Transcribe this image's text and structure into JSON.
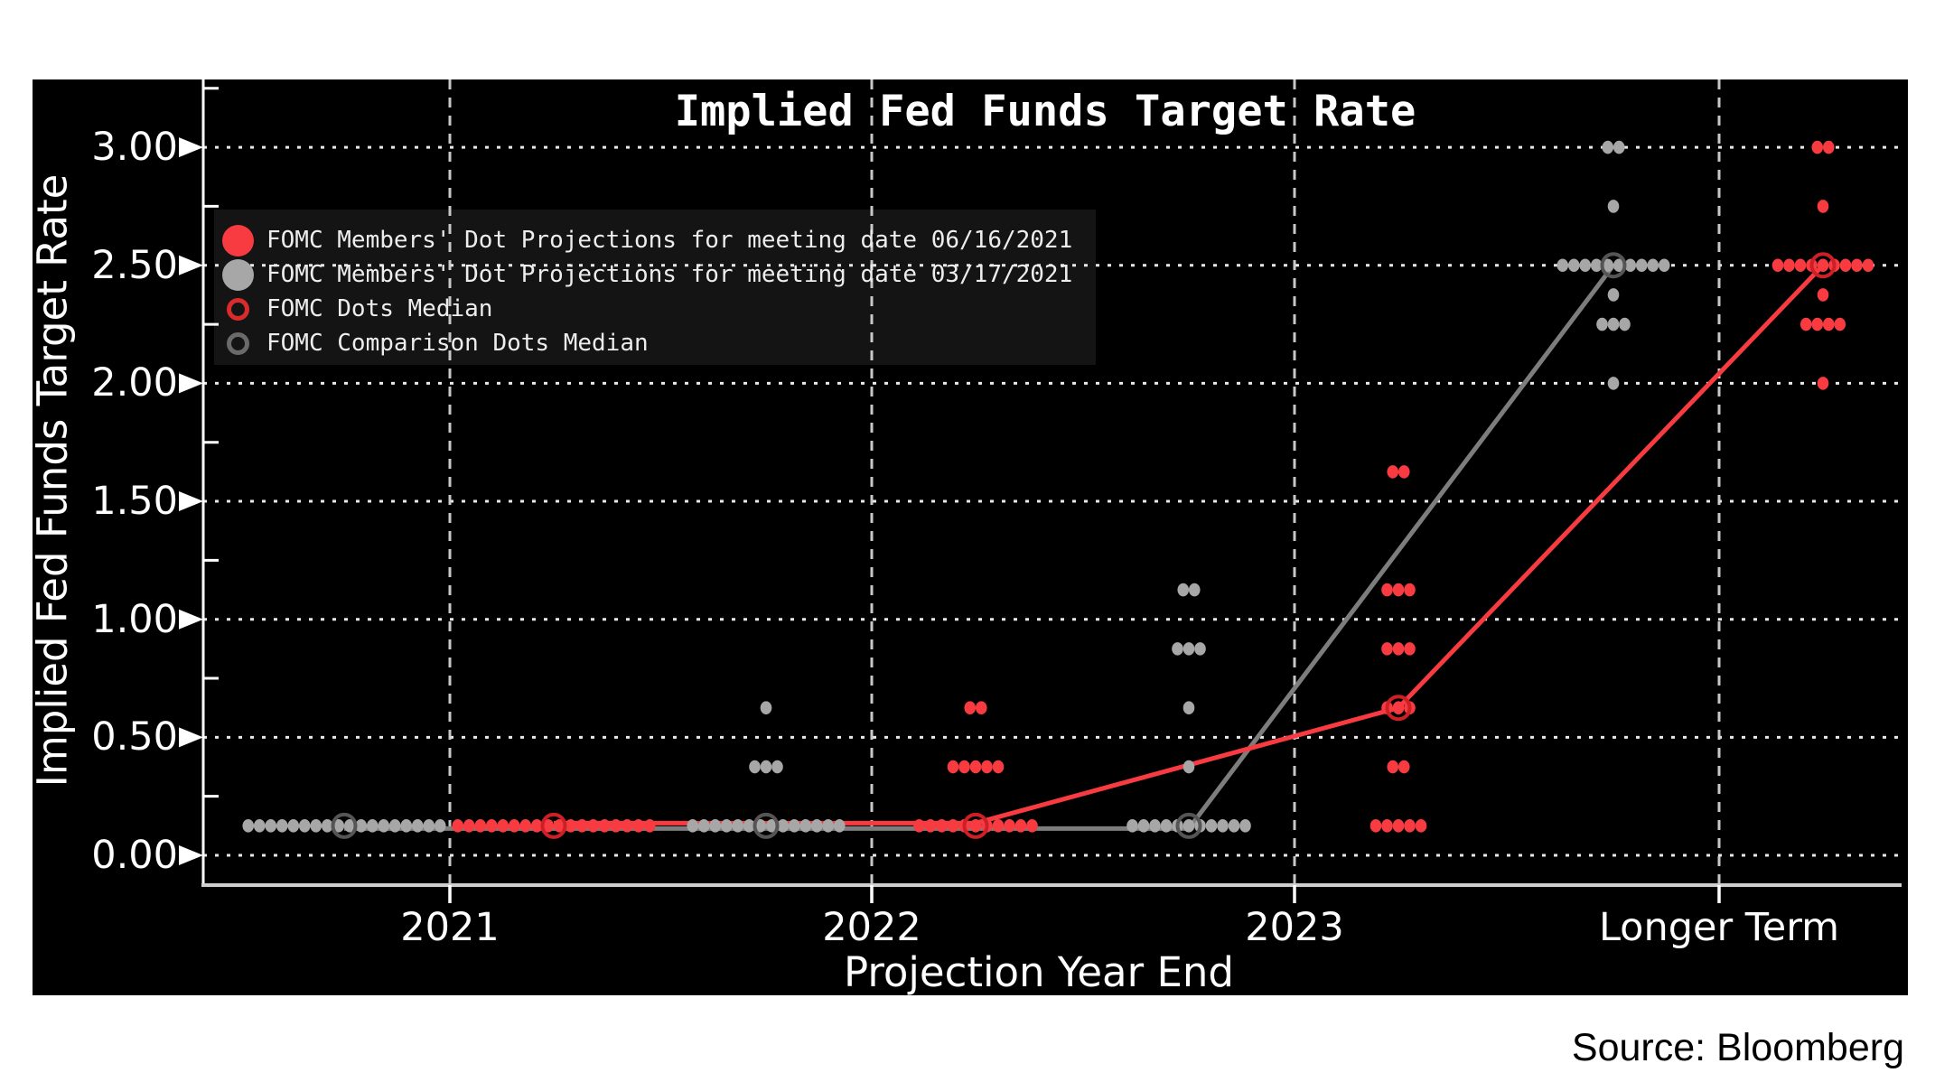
{
  "title": "Implied Fed Funds Target Rate",
  "source": "Source: Bloomberg",
  "x_axis": {
    "label": "Projection Year End",
    "ticks": [
      {
        "label": "2021"
      },
      {
        "label": "2022"
      },
      {
        "label": "2023"
      },
      {
        "label": "Longer Term"
      }
    ]
  },
  "y_axis": {
    "label": "Implied Fed Funds Target Rate",
    "ticks": [
      {
        "label": "3.00",
        "rate": 3.0
      },
      {
        "label": "2.50",
        "rate": 2.5
      },
      {
        "label": "2.00",
        "rate": 2.0
      },
      {
        "label": "1.50",
        "rate": 1.5
      },
      {
        "label": "1.00",
        "rate": 1.0
      },
      {
        "label": "0.50",
        "rate": 0.5
      },
      {
        "label": "0.00",
        "rate": 0.0
      }
    ]
  },
  "legend": [
    {
      "marker": "dot",
      "color": "#f73b40",
      "label": "FOMC Members' Dot Projections for meeting date 06/16/2021"
    },
    {
      "marker": "dot",
      "color": "#a7a7a7",
      "label": "FOMC Members' Dot Projections for meeting date 03/17/2021"
    },
    {
      "marker": "ring",
      "color": "#d92b2b",
      "label": "FOMC Dots Median"
    },
    {
      "marker": "ring",
      "color": "#6a6a6a",
      "label": "FOMC Comparison Dots Median"
    }
  ],
  "palette": {
    "background": "#000000",
    "page": "#ffffff",
    "june_red": "#f73b40",
    "march_gray": "#a7a7a7",
    "red_median_ring": "#cc2026",
    "gray_median_ring": "#555555",
    "grid_dotted": "#e9e9e9",
    "grid_dashed": "#d2d2d2",
    "legend_bg": "#141414"
  },
  "chart_data": {
    "type": "scatter",
    "title": "Implied Fed Funds Target Rate",
    "xlabel": "Projection Year End",
    "ylabel": "Implied Fed Funds Target Rate",
    "categories": [
      "2021",
      "2022",
      "2023",
      "Longer Term"
    ],
    "ylim": [
      -0.15,
      3.3
    ],
    "y_tick_step": 0.5,
    "grid": "horizontal dotted at 0.50 steps, vertical dashed at each category",
    "legend_position": "upper left",
    "note": "Fed dot plot; each dot = one FOMC member's rate projection (% midpoint); open circles mark the median; lines connect medians across horizons.",
    "series": [
      {
        "name": "FOMC Members' Dot Projections for meeting date 06/16/2021",
        "meeting_date": "06/16/2021",
        "color": "#f73b40",
        "median_ring_color": "#cc2026",
        "side": "right",
        "medians": [
          0.125,
          0.125,
          0.625,
          2.5
        ],
        "dots": [
          [
            [
              0.125,
              18
            ]
          ],
          [
            [
              0.125,
              11
            ],
            [
              0.375,
              5
            ],
            [
              0.625,
              2
            ]
          ],
          [
            [
              0.125,
              5
            ],
            [
              0.375,
              2
            ],
            [
              0.625,
              3
            ],
            [
              0.875,
              3
            ],
            [
              1.125,
              3
            ],
            [
              1.625,
              2
            ]
          ],
          [
            [
              2.0,
              1
            ],
            [
              2.25,
              4
            ],
            [
              2.375,
              1
            ],
            [
              2.5,
              9
            ],
            [
              2.75,
              1
            ],
            [
              3.0,
              2
            ]
          ]
        ]
      },
      {
        "name": "FOMC Members' Dot Projections for meeting date 03/17/2021",
        "meeting_date": "03/17/2021",
        "color": "#a7a7a7",
        "median_ring_color": "#555555",
        "side": "left",
        "medians": [
          0.125,
          0.125,
          0.125,
          2.5
        ],
        "dots": [
          [
            [
              0.125,
              18
            ]
          ],
          [
            [
              0.125,
              14
            ],
            [
              0.375,
              3
            ],
            [
              0.625,
              1
            ]
          ],
          [
            [
              0.125,
              11
            ],
            [
              0.375,
              1
            ],
            [
              0.625,
              1
            ],
            [
              0.875,
              3
            ],
            [
              1.125,
              2
            ]
          ],
          [
            [
              2.0,
              1
            ],
            [
              2.25,
              3
            ],
            [
              2.375,
              1
            ],
            [
              2.5,
              10
            ],
            [
              2.75,
              1
            ],
            [
              3.0,
              2
            ]
          ]
        ]
      }
    ]
  }
}
